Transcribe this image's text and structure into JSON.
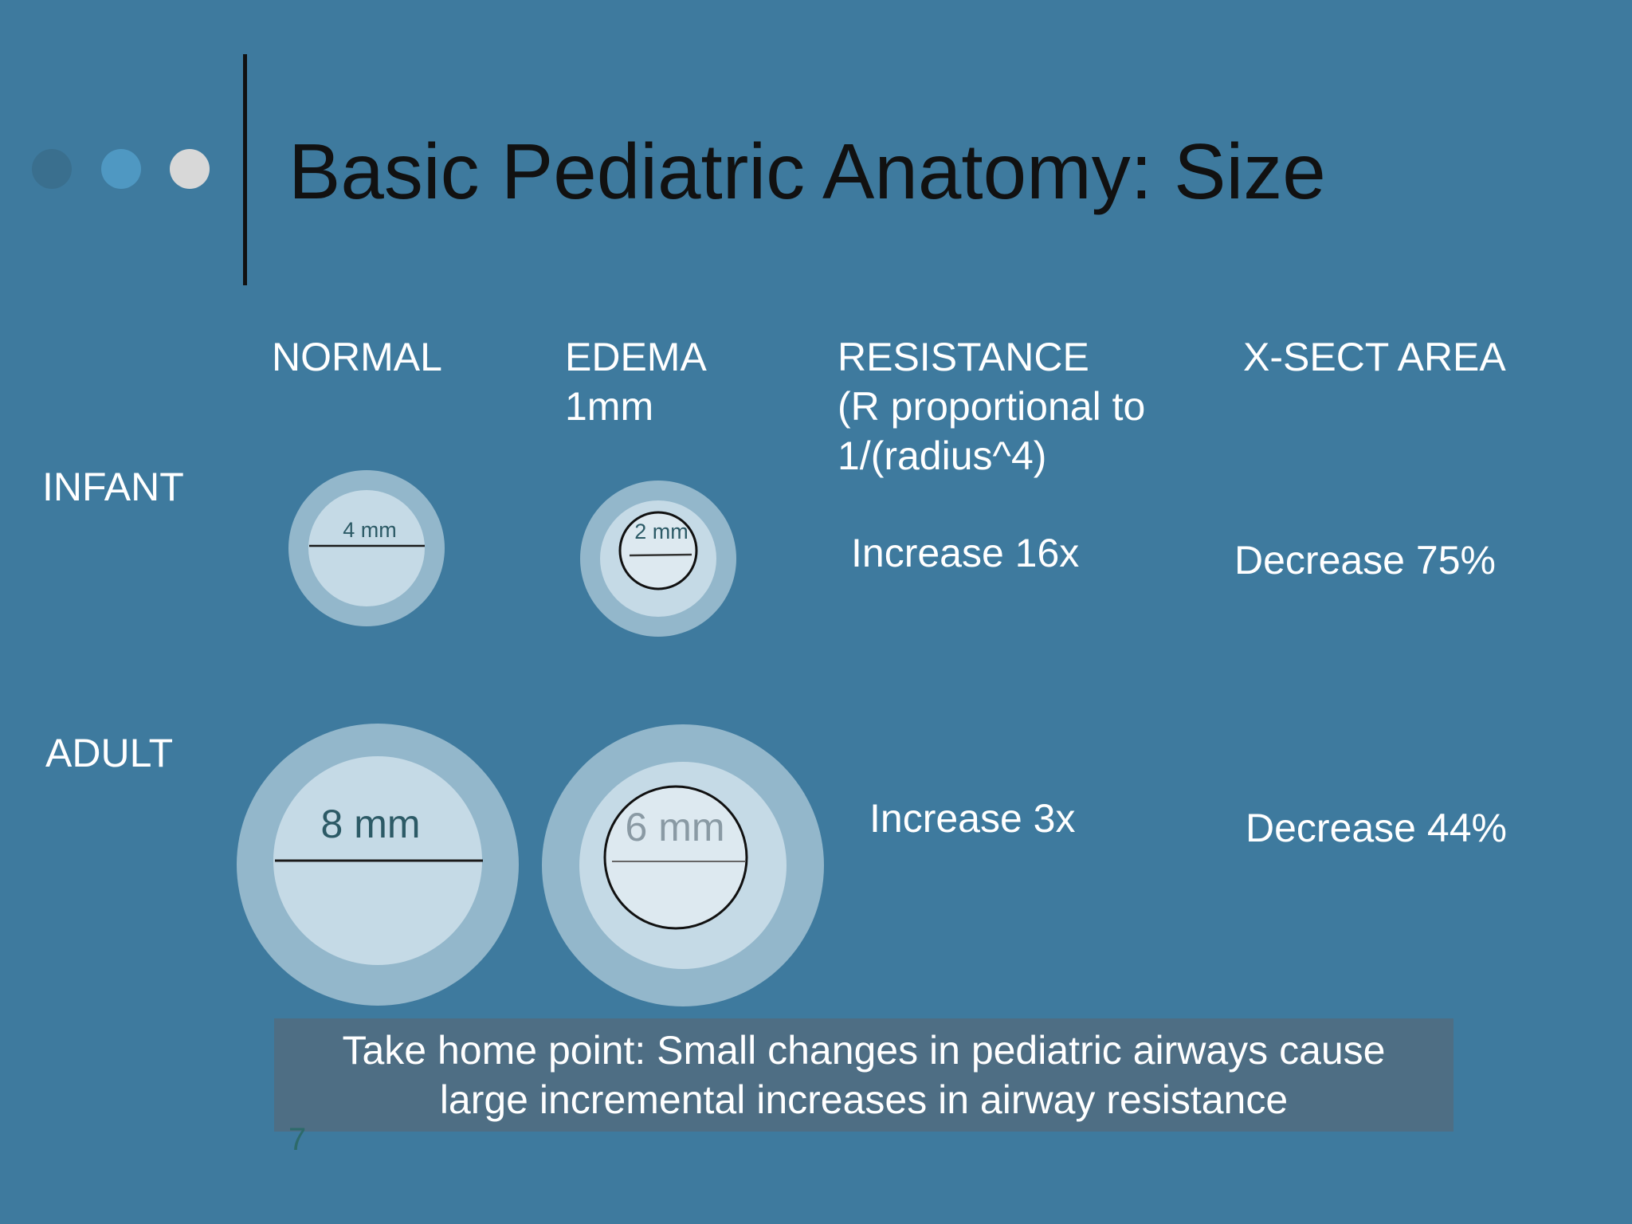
{
  "slide": {
    "title": "Basic Pediatric Anatomy: Size",
    "page_number": "7",
    "colors": {
      "background": "#3e7a9e",
      "dot_1": "#3a6f8e",
      "dot_2": "#4f98c2",
      "dot_3": "#d8d8d8",
      "outer_ring": "#93b7cb",
      "lumen": "#c5dae6",
      "edema_lumen": "#dde9f0",
      "callout": "#4e6e84"
    }
  },
  "columns": {
    "normal": "NORMAL",
    "edema_line1": "EDEMA",
    "edema_line2": "1mm",
    "resistance_line1": "RESISTANCE",
    "resistance_line2": "(R proportional to",
    "resistance_line3": "1/(radius^4)",
    "xsect": "X-SECT AREA"
  },
  "rows": {
    "infant": {
      "label": "INFANT",
      "normal_diameter": "4 mm",
      "edema_diameter": "2 mm",
      "resistance": "Increase 16x",
      "area": "Decrease 75%"
    },
    "adult": {
      "label": "ADULT",
      "normal_diameter": "8 mm",
      "edema_diameter": "6 mm",
      "resistance": "Increase 3x",
      "area": "Decrease 44%"
    }
  },
  "callout": {
    "line1": "Take home point:  Small changes in pediatric airways cause",
    "line2": "large incremental increases in airway resistance"
  }
}
